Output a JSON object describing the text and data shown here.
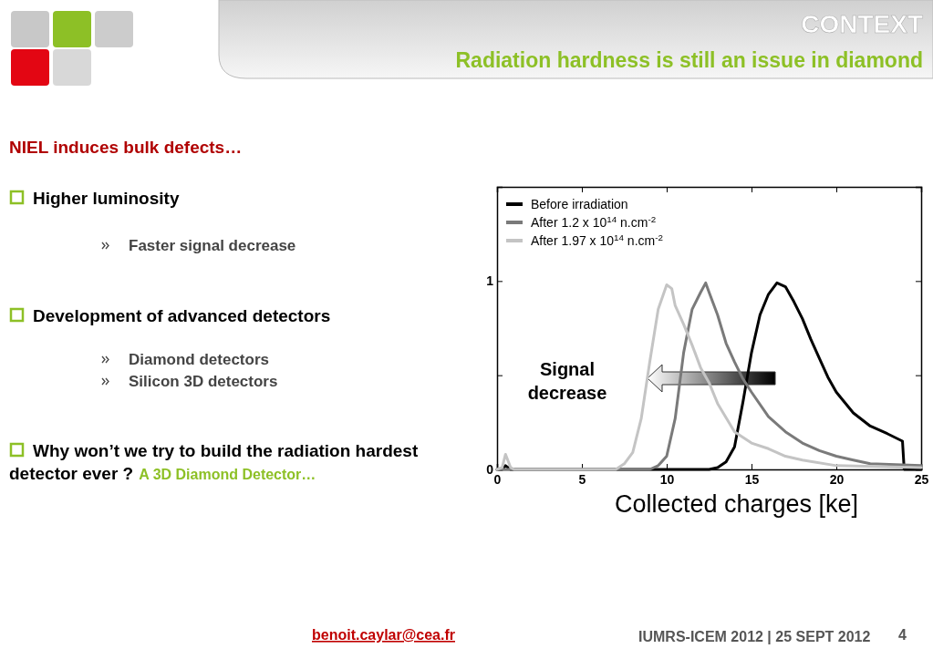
{
  "chart_data": {
    "type": "line",
    "title": "CONTEXT",
    "subtitle": "Radiation hardness is still an issue in diamond",
    "xlabel": "Collected charges [ke]",
    "xlim": [
      0,
      25
    ],
    "xticks": [
      0,
      5,
      10,
      15,
      20,
      25
    ],
    "ylim": [
      0,
      1.5
    ],
    "yticks": [
      0,
      {
        "value": 0.5,
        "label": null
      },
      1
    ],
    "legend": "top left",
    "grid": false,
    "marker": "none",
    "line_style": "solid",
    "series": [
      {
        "name": "Before irradiation",
        "color": "#000000",
        "x": [
          0,
          0.3,
          0.5,
          0.8,
          1,
          5,
          12.5,
          13,
          13.5,
          14,
          14.5,
          15,
          15.5,
          16,
          16.5,
          17,
          17.5,
          18,
          18.5,
          19,
          19.5,
          20,
          21,
          22,
          23,
          23.9,
          24,
          25
        ],
        "values": [
          0,
          0,
          0.02,
          0,
          0,
          0,
          0,
          0.01,
          0.04,
          0.12,
          0.36,
          0.62,
          0.82,
          0.93,
          0.99,
          0.97,
          0.89,
          0.8,
          0.69,
          0.59,
          0.49,
          0.41,
          0.3,
          0.23,
          0.19,
          0.15,
          0,
          0
        ]
      },
      {
        "name": "After 1.2 x 10$^{14}$ n.cm$^{-2}$",
        "color": "#7a7a7a",
        "x": [
          0,
          5,
          9,
          9.5,
          10,
          10.5,
          11,
          11.5,
          12,
          12.3,
          12.5,
          13,
          13.5,
          14,
          14.5,
          15,
          16,
          17,
          18,
          19,
          20,
          21,
          22,
          25
        ],
        "values": [
          0,
          0,
          0,
          0.02,
          0.07,
          0.27,
          0.62,
          0.85,
          0.94,
          0.99,
          0.94,
          0.82,
          0.67,
          0.57,
          0.48,
          0.41,
          0.28,
          0.2,
          0.14,
          0.1,
          0.07,
          0.05,
          0.03,
          0.02
        ]
      },
      {
        "name": "After 1.97 x 10$^{14}$ n.cm$^{-2}$",
        "color": "#c4c4c4",
        "x": [
          0,
          0.3,
          0.5,
          0.8,
          1,
          7,
          7.5,
          8,
          8.5,
          9,
          9.5,
          10,
          10.3,
          10.5,
          11,
          11.5,
          12,
          12.5,
          13,
          14,
          15,
          16,
          17,
          18,
          20,
          25
        ],
        "values": [
          0,
          0.01,
          0.08,
          0.01,
          0,
          0,
          0.03,
          0.09,
          0.27,
          0.57,
          0.85,
          0.98,
          0.96,
          0.87,
          0.77,
          0.66,
          0.54,
          0.46,
          0.35,
          0.2,
          0.14,
          0.11,
          0.07,
          0.05,
          0.02,
          0.01
        ]
      }
    ],
    "annotations": [
      "NIEL induces bulk defects…",
      "Higher luminosity",
      "Faster signal decrease",
      "Development of advanced detectors",
      "Diamond detectors",
      "Silicon 3D detectors",
      "Why won’t we try to build the radiation hardest detector ever ?",
      "A 3D Diamond Detector…",
      "Signal decrease",
      "benoit.caylar@cea.fr",
      "IUMRS-ICEM 2012 | 25 SEPT 2012",
      "4"
    ]
  }
}
